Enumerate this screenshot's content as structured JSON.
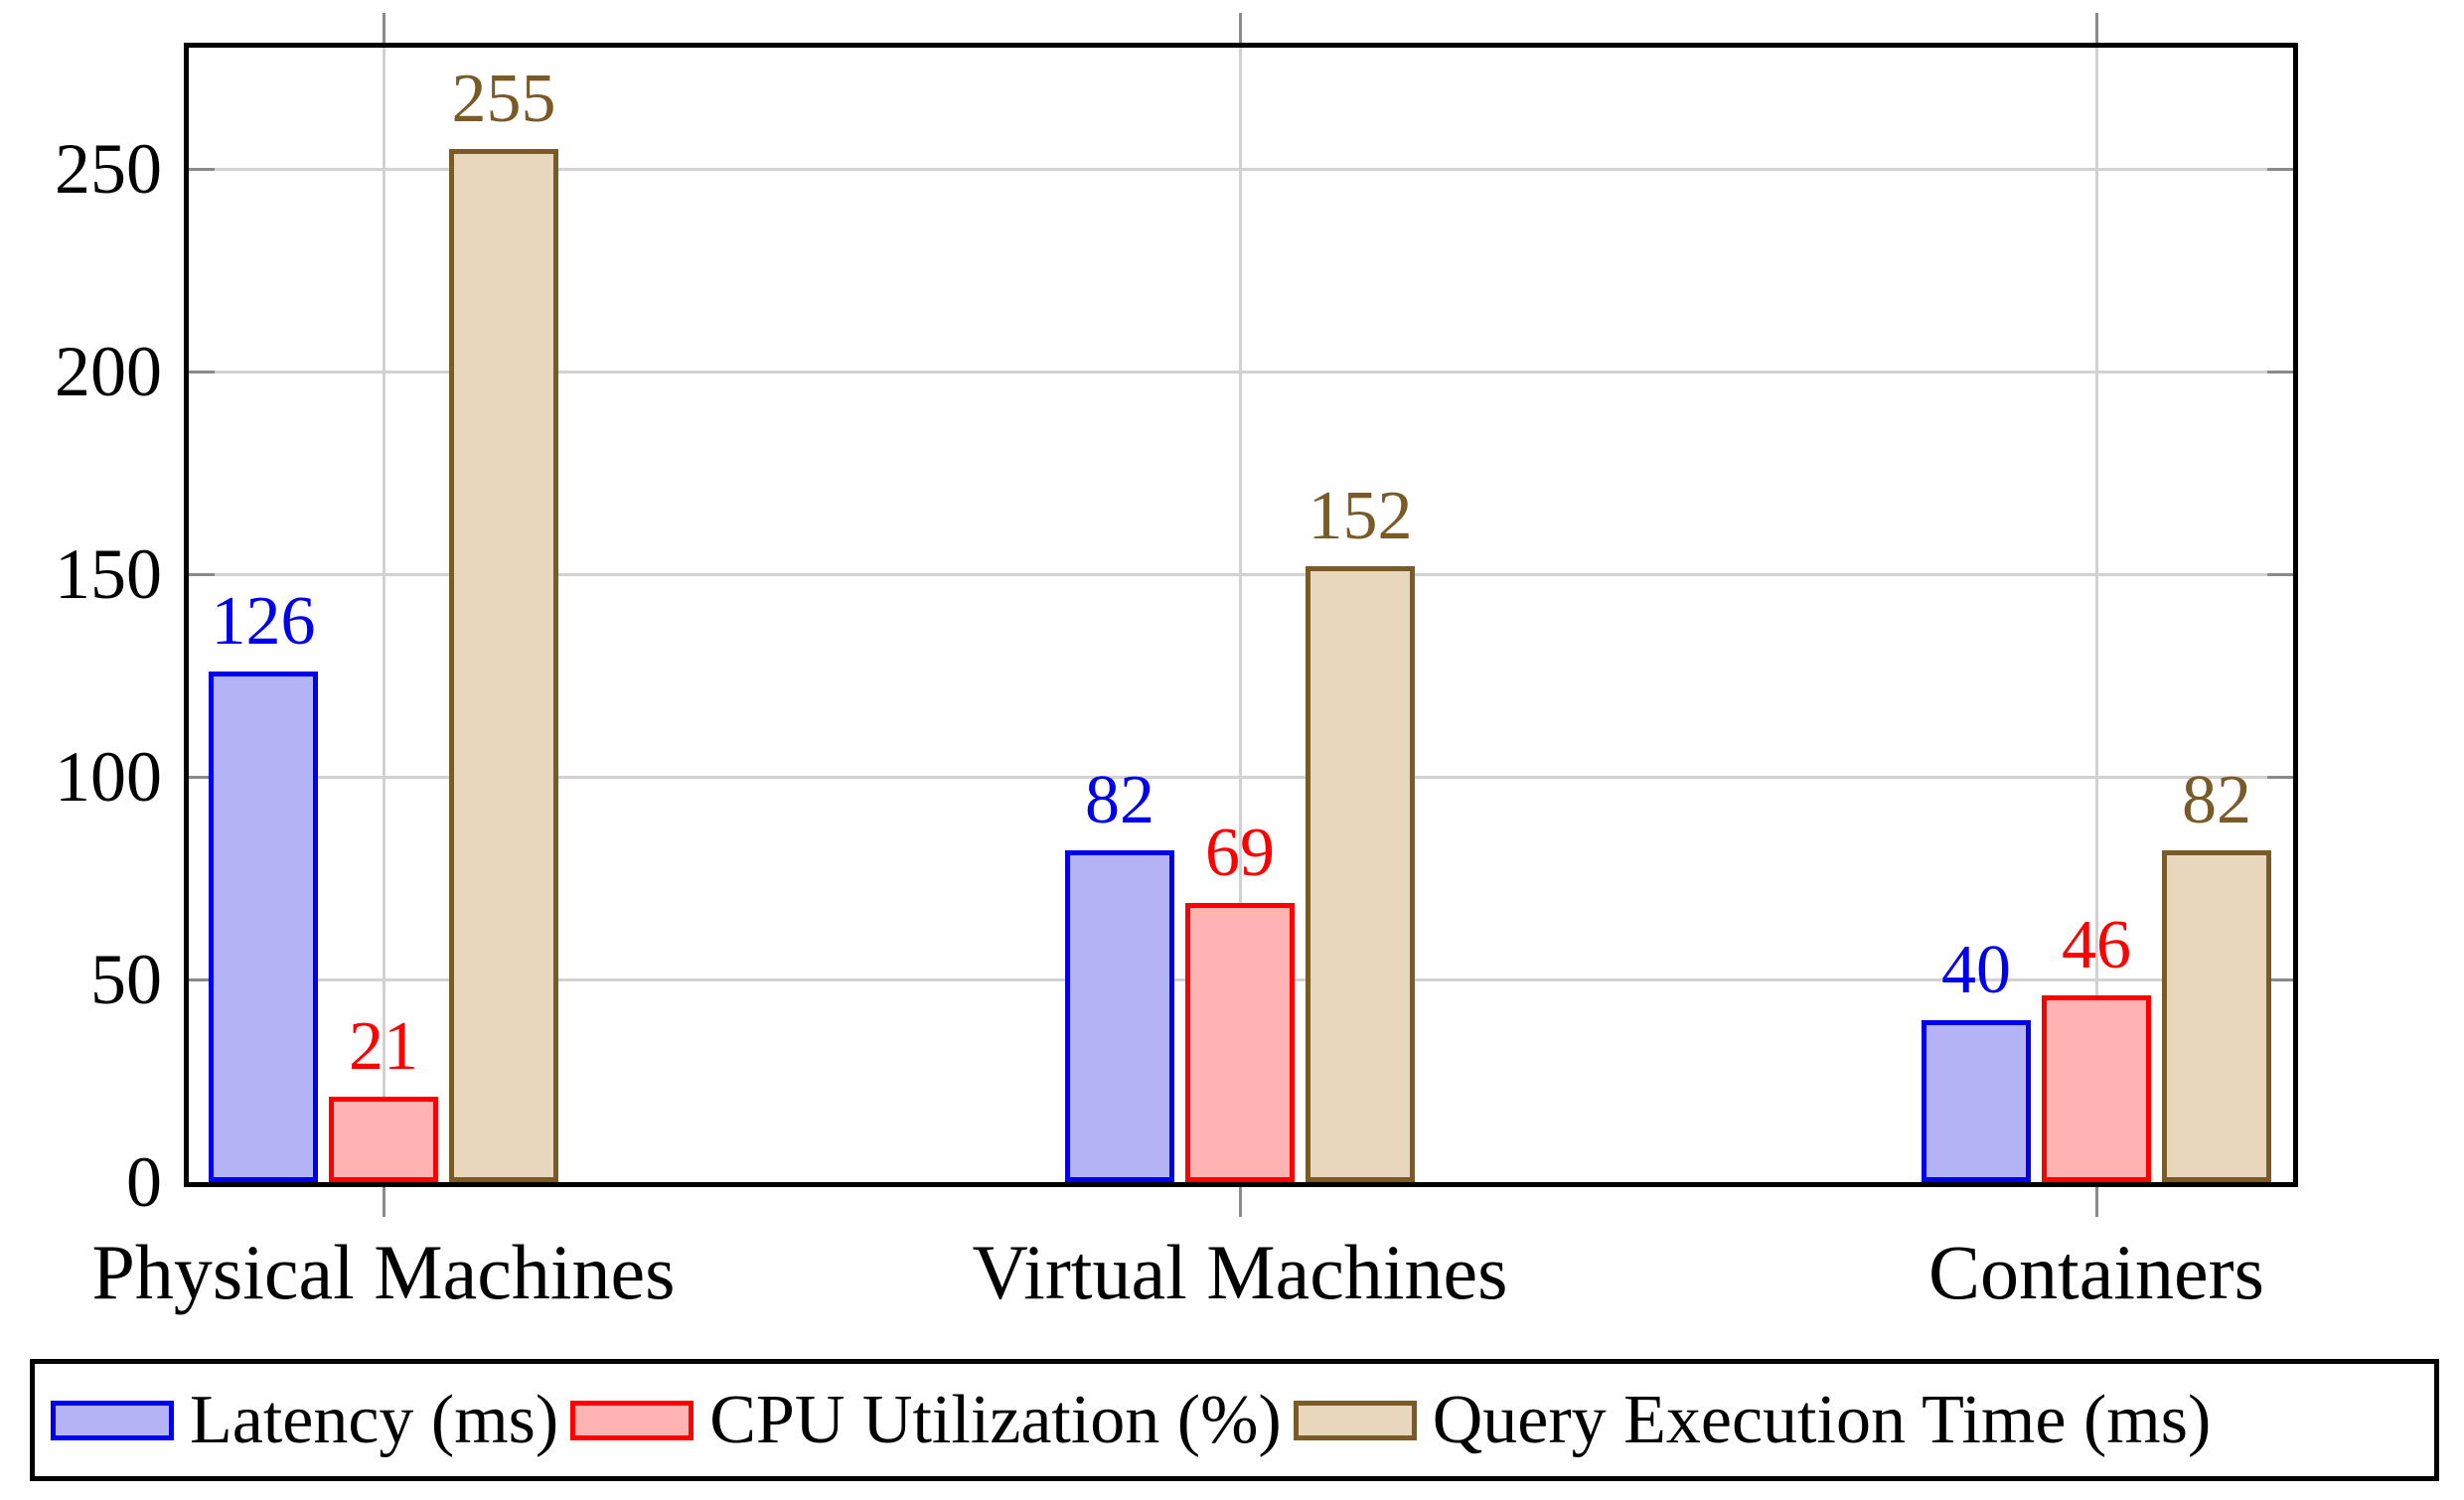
{
  "chart_data": {
    "type": "bar",
    "title": "",
    "xlabel": "",
    "ylabel": "",
    "categories": [
      "Physical Machines",
      "Virtual Machines",
      "Containers"
    ],
    "series": [
      {
        "name": "Latency (ms)",
        "values": [
          126,
          82,
          40
        ],
        "fill_color": "#b3b3f5",
        "stroke_color": "#0000ee",
        "label_color": "#0000ee"
      },
      {
        "name": "CPU Utilization (%)",
        "values": [
          21,
          69,
          46
        ],
        "fill_color": "#ffb3b3",
        "stroke_color": "#ff0000",
        "label_color": "#ff0000"
      },
      {
        "name": "Query Execution Time (ms)",
        "values": [
          255,
          152,
          82
        ],
        "fill_color": "#e8d6bd",
        "stroke_color": "#7a5a26",
        "label_color": "#7a5a26"
      }
    ],
    "yticks": [
      0,
      50,
      100,
      150,
      200,
      250
    ],
    "ylim": [
      0,
      280
    ],
    "grid": true,
    "bar_value_labels": true,
    "legend_position": "bottom",
    "axis_color": "#000000",
    "grid_color": "#d2d2d2",
    "tick_color": "#8a8a8a"
  }
}
